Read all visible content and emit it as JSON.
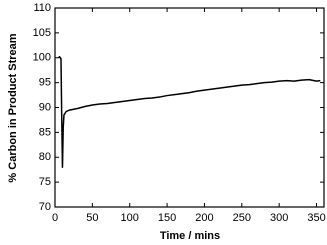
{
  "chart_data": {
    "type": "line",
    "xlabel": "Time / mins",
    "ylabel": "% Carbon in Product Stream",
    "x": [
      5,
      6,
      7,
      8,
      9,
      10,
      11,
      12,
      15,
      20,
      30,
      40,
      50,
      60,
      70,
      80,
      90,
      100,
      110,
      120,
      130,
      140,
      150,
      160,
      170,
      180,
      190,
      200,
      210,
      220,
      230,
      240,
      250,
      260,
      270,
      280,
      290,
      300,
      310,
      320,
      330,
      340,
      350,
      355
    ],
    "values": [
      100,
      100.2,
      100,
      99.8,
      88,
      78,
      86,
      88.5,
      89.2,
      89.5,
      89.8,
      90.2,
      90.5,
      90.7,
      90.8,
      91.0,
      91.2,
      91.4,
      91.6,
      91.8,
      91.9,
      92.1,
      92.4,
      92.6,
      92.8,
      93.0,
      93.3,
      93.5,
      93.7,
      93.9,
      94.1,
      94.3,
      94.5,
      94.6,
      94.8,
      95.0,
      95.1,
      95.3,
      95.4,
      95.3,
      95.5,
      95.6,
      95.3,
      95.4
    ],
    "color": "#000000",
    "xlim": [
      0,
      360
    ],
    "xticks": [
      0,
      50,
      100,
      150,
      200,
      250,
      300,
      350
    ],
    "ylim": [
      70,
      110
    ],
    "yticks": [
      70,
      75,
      80,
      85,
      90,
      95,
      100,
      105,
      110
    ]
  }
}
